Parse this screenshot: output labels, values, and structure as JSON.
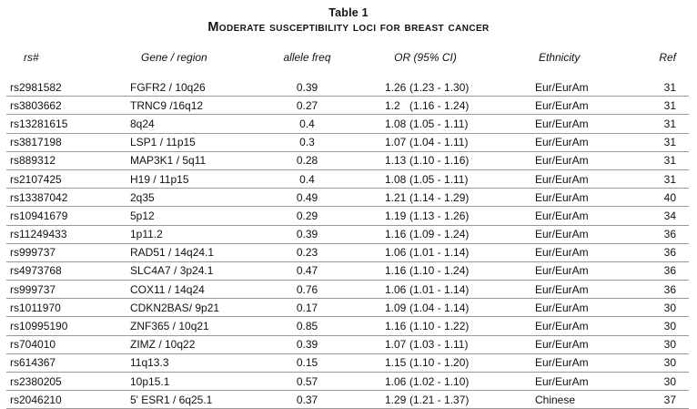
{
  "table": {
    "title": "Table 1",
    "subtitle": "Moderate susceptibility loci for breast cancer",
    "columns": [
      "rs#",
      "Gene / region",
      "allele freq",
      "OR (95% CI)",
      "Ethnicity",
      "Ref"
    ],
    "rows": [
      {
        "rs": "rs2981582",
        "gene": "FGFR2 / 10q26",
        "freq": "0.39",
        "or": "1.26",
        "ci": "(1.23 - 1.30)",
        "ethnicity": "Eur/EurAm",
        "ref": "31"
      },
      {
        "rs": "rs3803662",
        "gene": "TRNC9 /16q12",
        "freq": "0.27",
        "or": "1.2",
        "ci": "(1.16 - 1.24)",
        "ethnicity": "Eur/EurAm",
        "ref": "31"
      },
      {
        "rs": "rs13281615",
        "gene": "8q24",
        "freq": "0.4",
        "or": "1.08",
        "ci": "(1.05 - 1.11)",
        "ethnicity": "Eur/EurAm",
        "ref": "31"
      },
      {
        "rs": "rs3817198",
        "gene": "LSP1 / 11p15",
        "freq": "0.3",
        "or": "1.07",
        "ci": "(1.04 - 1.11)",
        "ethnicity": "Eur/EurAm",
        "ref": "31"
      },
      {
        "rs": "rs889312",
        "gene": "MAP3K1 / 5q11",
        "freq": "0.28",
        "or": "1.13",
        "ci": "(1.10 - 1.16)",
        "ethnicity": "Eur/EurAm",
        "ref": "31"
      },
      {
        "rs": "rs2107425",
        "gene": "H19 / 11p15",
        "freq": "0.4",
        "or": "1.08",
        "ci": "(1.05 - 1.11)",
        "ethnicity": "Eur/EurAm",
        "ref": "31"
      },
      {
        "rs": "rs13387042",
        "gene": "2q35",
        "freq": "0.49",
        "or": "1.21",
        "ci": "(1.14 - 1.29)",
        "ethnicity": "Eur/EurAm",
        "ref": "40"
      },
      {
        "rs": "rs10941679",
        "gene": "5p12",
        "freq": "0.29",
        "or": "1.19",
        "ci": "(1.13 - 1.26)",
        "ethnicity": "Eur/EurAm",
        "ref": "34"
      },
      {
        "rs": "rs11249433",
        "gene": "1p11.2",
        "freq": "0.39",
        "or": "1.16",
        "ci": "(1.09 - 1.24)",
        "ethnicity": "Eur/EurAm",
        "ref": "36"
      },
      {
        "rs": "rs999737",
        "gene": "RAD51 / 14q24.1",
        "freq": "0.23",
        "or": "1.06",
        "ci": "(1.01 - 1.14)",
        "ethnicity": "Eur/EurAm",
        "ref": "36"
      },
      {
        "rs": "rs4973768",
        "gene": "SLC4A7 / 3p24.1",
        "freq": "0.47",
        "or": "1.16",
        "ci": "(1.10 - 1.24)",
        "ethnicity": "Eur/EurAm",
        "ref": "36"
      },
      {
        "rs": "rs999737",
        "gene": "COX11 / 14q24",
        "freq": "0.76",
        "or": "1.06",
        "ci": "(1.01 - 1.14)",
        "ethnicity": "Eur/EurAm",
        "ref": "36"
      },
      {
        "rs": "rs1011970",
        "gene": "CDKN2BAS/ 9p21",
        "freq": "0.17",
        "or": "1.09",
        "ci": "(1.04 - 1.14)",
        "ethnicity": "Eur/EurAm",
        "ref": "30"
      },
      {
        "rs": "rs10995190",
        "gene": "ZNF365 / 10q21",
        "freq": "0.85",
        "or": "1.16",
        "ci": "(1.10 - 1.22)",
        "ethnicity": "Eur/EurAm",
        "ref": "30"
      },
      {
        "rs": "rs704010",
        "gene": "ZIMZ / 10q22",
        "freq": "0.39",
        "or": "1.07",
        "ci": "(1.03 - 1.11)",
        "ethnicity": "Eur/EurAm",
        "ref": "30"
      },
      {
        "rs": "rs614367",
        "gene": "11q13.3",
        "freq": "0.15",
        "or": "1.15",
        "ci": "(1.10 - 1.20)",
        "ethnicity": "Eur/EurAm",
        "ref": "30"
      },
      {
        "rs": "rs2380205",
        "gene": "10p15.1",
        "freq": "0.57",
        "or": "1.06",
        "ci": "(1.02 - 1.10)",
        "ethnicity": "Eur/EurAm",
        "ref": "30"
      },
      {
        "rs": "rs2046210",
        "gene": "5' ESR1 / 6q25.1",
        "freq": "0.37",
        "or": "1.29",
        "ci": "(1.21 - 1.37)",
        "ethnicity": "Chinese",
        "ref": "37"
      }
    ]
  },
  "colors": {
    "text": "#121212",
    "rule": "#9a9a9a",
    "background": "#ffffff"
  }
}
